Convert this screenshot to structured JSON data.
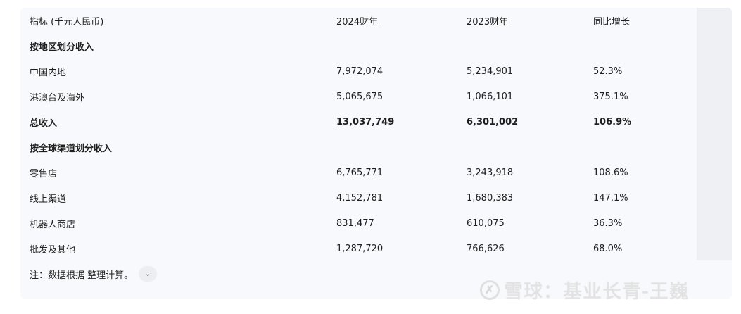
{
  "table": {
    "headers": [
      "指标 (千元人民币)",
      "2024财年",
      "2023财年",
      "同比增长"
    ],
    "rows": [
      {
        "cells": [
          "按地区划分收入",
          "",
          "",
          ""
        ],
        "bold": true
      },
      {
        "cells": [
          "中国内地",
          "7,972,074",
          "5,234,901",
          "52.3%"
        ]
      },
      {
        "cells": [
          "港澳台及海外",
          "5,065,675",
          "1,066,101",
          "375.1%"
        ]
      },
      {
        "cells": [
          "总收入",
          "13,037,749",
          "6,301,002",
          "106.9%"
        ],
        "bold": true
      },
      {
        "cells": [
          "按全球渠道划分收入",
          "",
          "",
          ""
        ],
        "bold": true
      },
      {
        "cells": [
          "零售店",
          "6,765,771",
          "3,243,918",
          "108.6%"
        ]
      },
      {
        "cells": [
          "线上渠道",
          "4,152,781",
          "1,680,383",
          "147.1%"
        ]
      },
      {
        "cells": [
          "机器人商店",
          "831,477",
          "610,075",
          "36.3%"
        ]
      },
      {
        "cells": [
          "批发及其他",
          "1,287,720",
          "766,626",
          "68.0%"
        ]
      }
    ]
  },
  "note": "注：数据根据 整理计算。",
  "watermark": "雪球：基业长青-王巍"
}
